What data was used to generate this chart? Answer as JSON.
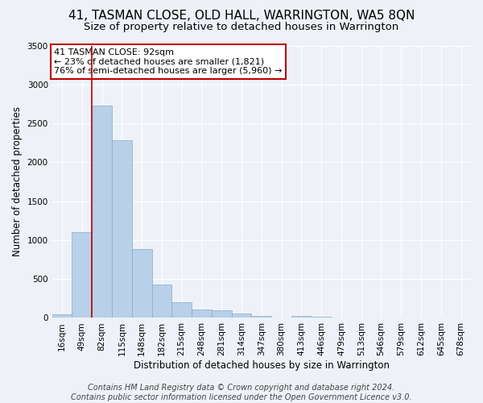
{
  "title": "41, TASMAN CLOSE, OLD HALL, WARRINGTON, WA5 8QN",
  "subtitle": "Size of property relative to detached houses in Warrington",
  "xlabel": "Distribution of detached houses by size in Warrington",
  "ylabel": "Number of detached properties",
  "bar_labels": [
    "16sqm",
    "49sqm",
    "82sqm",
    "115sqm",
    "148sqm",
    "182sqm",
    "215sqm",
    "248sqm",
    "281sqm",
    "314sqm",
    "347sqm",
    "380sqm",
    "413sqm",
    "446sqm",
    "479sqm",
    "513sqm",
    "546sqm",
    "579sqm",
    "612sqm",
    "645sqm",
    "678sqm"
  ],
  "bar_values": [
    50,
    1100,
    2730,
    2280,
    880,
    430,
    200,
    105,
    100,
    55,
    30,
    0,
    25,
    20,
    0,
    0,
    0,
    0,
    0,
    0,
    0
  ],
  "bar_color": "#b8d0e8",
  "bar_edgecolor": "#88aacc",
  "vline_x": 1.5,
  "vline_color": "#bb0000",
  "ylim": [
    0,
    3500
  ],
  "yticks": [
    0,
    500,
    1000,
    1500,
    2000,
    2500,
    3000,
    3500
  ],
  "annotation_text": "41 TASMAN CLOSE: 92sqm\n← 23% of detached houses are smaller (1,821)\n76% of semi-detached houses are larger (5,960) →",
  "annotation_box_facecolor": "#ffffff",
  "annotation_box_edgecolor": "#bb0000",
  "footer_line1": "Contains HM Land Registry data © Crown copyright and database right 2024.",
  "footer_line2": "Contains public sector information licensed under the Open Government Licence v3.0.",
  "background_color": "#eef2f8",
  "grid_color": "#ffffff",
  "title_fontsize": 11,
  "subtitle_fontsize": 9.5,
  "axis_label_fontsize": 8.5,
  "tick_fontsize": 7.5,
  "footer_fontsize": 7
}
